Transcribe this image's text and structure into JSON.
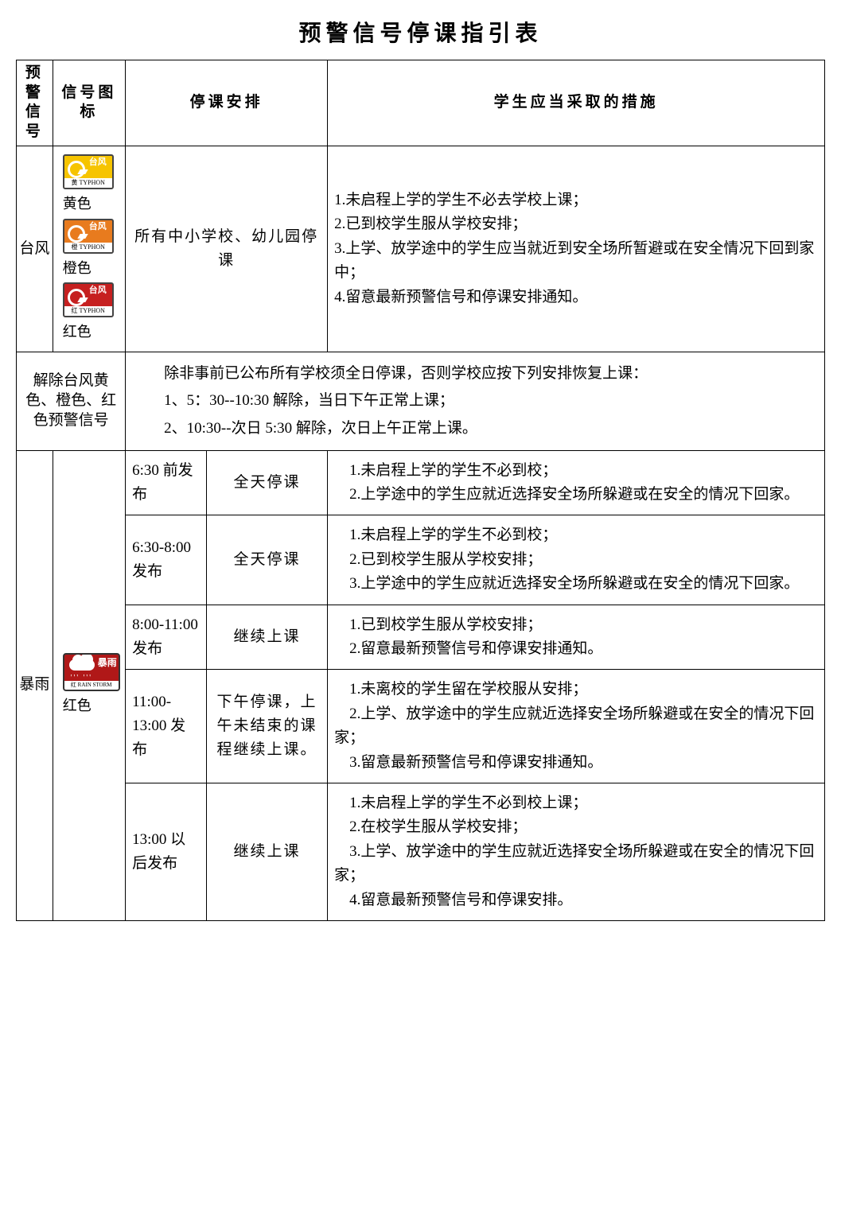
{
  "title": "预警信号停课指引表",
  "headers": {
    "signal": "预警信号",
    "icon": "信号图标",
    "arrangement": "停课安排",
    "measures": "学生应当采取的措施"
  },
  "typhoon": {
    "name": "台风",
    "icons": {
      "yellow": {
        "label": "黄色",
        "cn": "台风",
        "band_cn": "黄",
        "band_en": "TYPHON",
        "bg": "#f6c400",
        "border": "#4a4a4a"
      },
      "orange": {
        "label": "橙色",
        "cn": "台风",
        "band_cn": "橙",
        "band_en": "TYPHON",
        "bg": "#e87b1e",
        "border": "#4a4a4a"
      },
      "red": {
        "label": "红色",
        "cn": "台风",
        "band_cn": "红",
        "band_en": "TYPHON",
        "bg": "#c62020",
        "border": "#4a4a4a"
      }
    },
    "arrangement": "所有中小学校、幼儿园停课",
    "measures": [
      "1.未启程上学的学生不必去学校上课；",
      "2.已到校学生服从学校安排；",
      "3.上学、放学途中的学生应当就近到安全场所暂避或在安全情况下回到家中；",
      "4.留意最新预警信号和停课安排通知。"
    ]
  },
  "typhoon_cancel": {
    "label": "解除台风黄色、橙色、红色预警信号",
    "lines": [
      "　　除非事前已公布所有学校须全日停课，否则学校应按下列安排恢复上课：",
      "　　1、5：30--10:30 解除，当日下午正常上课；",
      "　　2、10:30--次日 5:30 解除，次日上午正常上课。"
    ]
  },
  "rainstorm": {
    "name": "暴雨",
    "icon": {
      "label": "红色",
      "cn": "暴雨",
      "band_cn": "红",
      "band_en": "RAIN STORM",
      "bg": "#b01818"
    },
    "rows": [
      {
        "time": "6:30 前发布",
        "arrangement": "全天停课",
        "measures": [
          "　1.未启程上学的学生不必到校；",
          "　2.上学途中的学生应就近选择安全场所躲避或在安全的情况下回家。"
        ]
      },
      {
        "time": "6:30-8:00 发布",
        "arrangement": "全天停课",
        "measures": [
          "　1.未启程上学的学生不必到校；",
          "　2.已到校学生服从学校安排；",
          "　3.上学途中的学生应就近选择安全场所躲避或在安全的情况下回家。"
        ]
      },
      {
        "time": "8:00-11:00 发布",
        "arrangement": "继续上课",
        "measures": [
          "　1.已到校学生服从学校安排；",
          "　2.留意最新预警信号和停课安排通知。"
        ]
      },
      {
        "time": "11:00-13:00 发布",
        "arrangement": "下午停课，上午未结束的课程继续上课。",
        "measures": [
          "　1.未离校的学生留在学校服从安排；",
          "　2.上学、放学途中的学生应就近选择安全场所躲避或在安全的情况下回家；",
          "　3.留意最新预警信号和停课安排通知。"
        ]
      },
      {
        "time": "13:00 以后发布",
        "arrangement": "继续上课",
        "measures": [
          "　1.未启程上学的学生不必到校上课；",
          "　2.在校学生服从学校安排；",
          "　3.上学、放学途中的学生应就近选择安全场所躲避或在安全的情况下回家；",
          "　4.留意最新预警信号和停课安排。"
        ]
      }
    ]
  },
  "colors": {
    "text": "#000000",
    "bg": "#ffffff",
    "border": "#000000"
  }
}
